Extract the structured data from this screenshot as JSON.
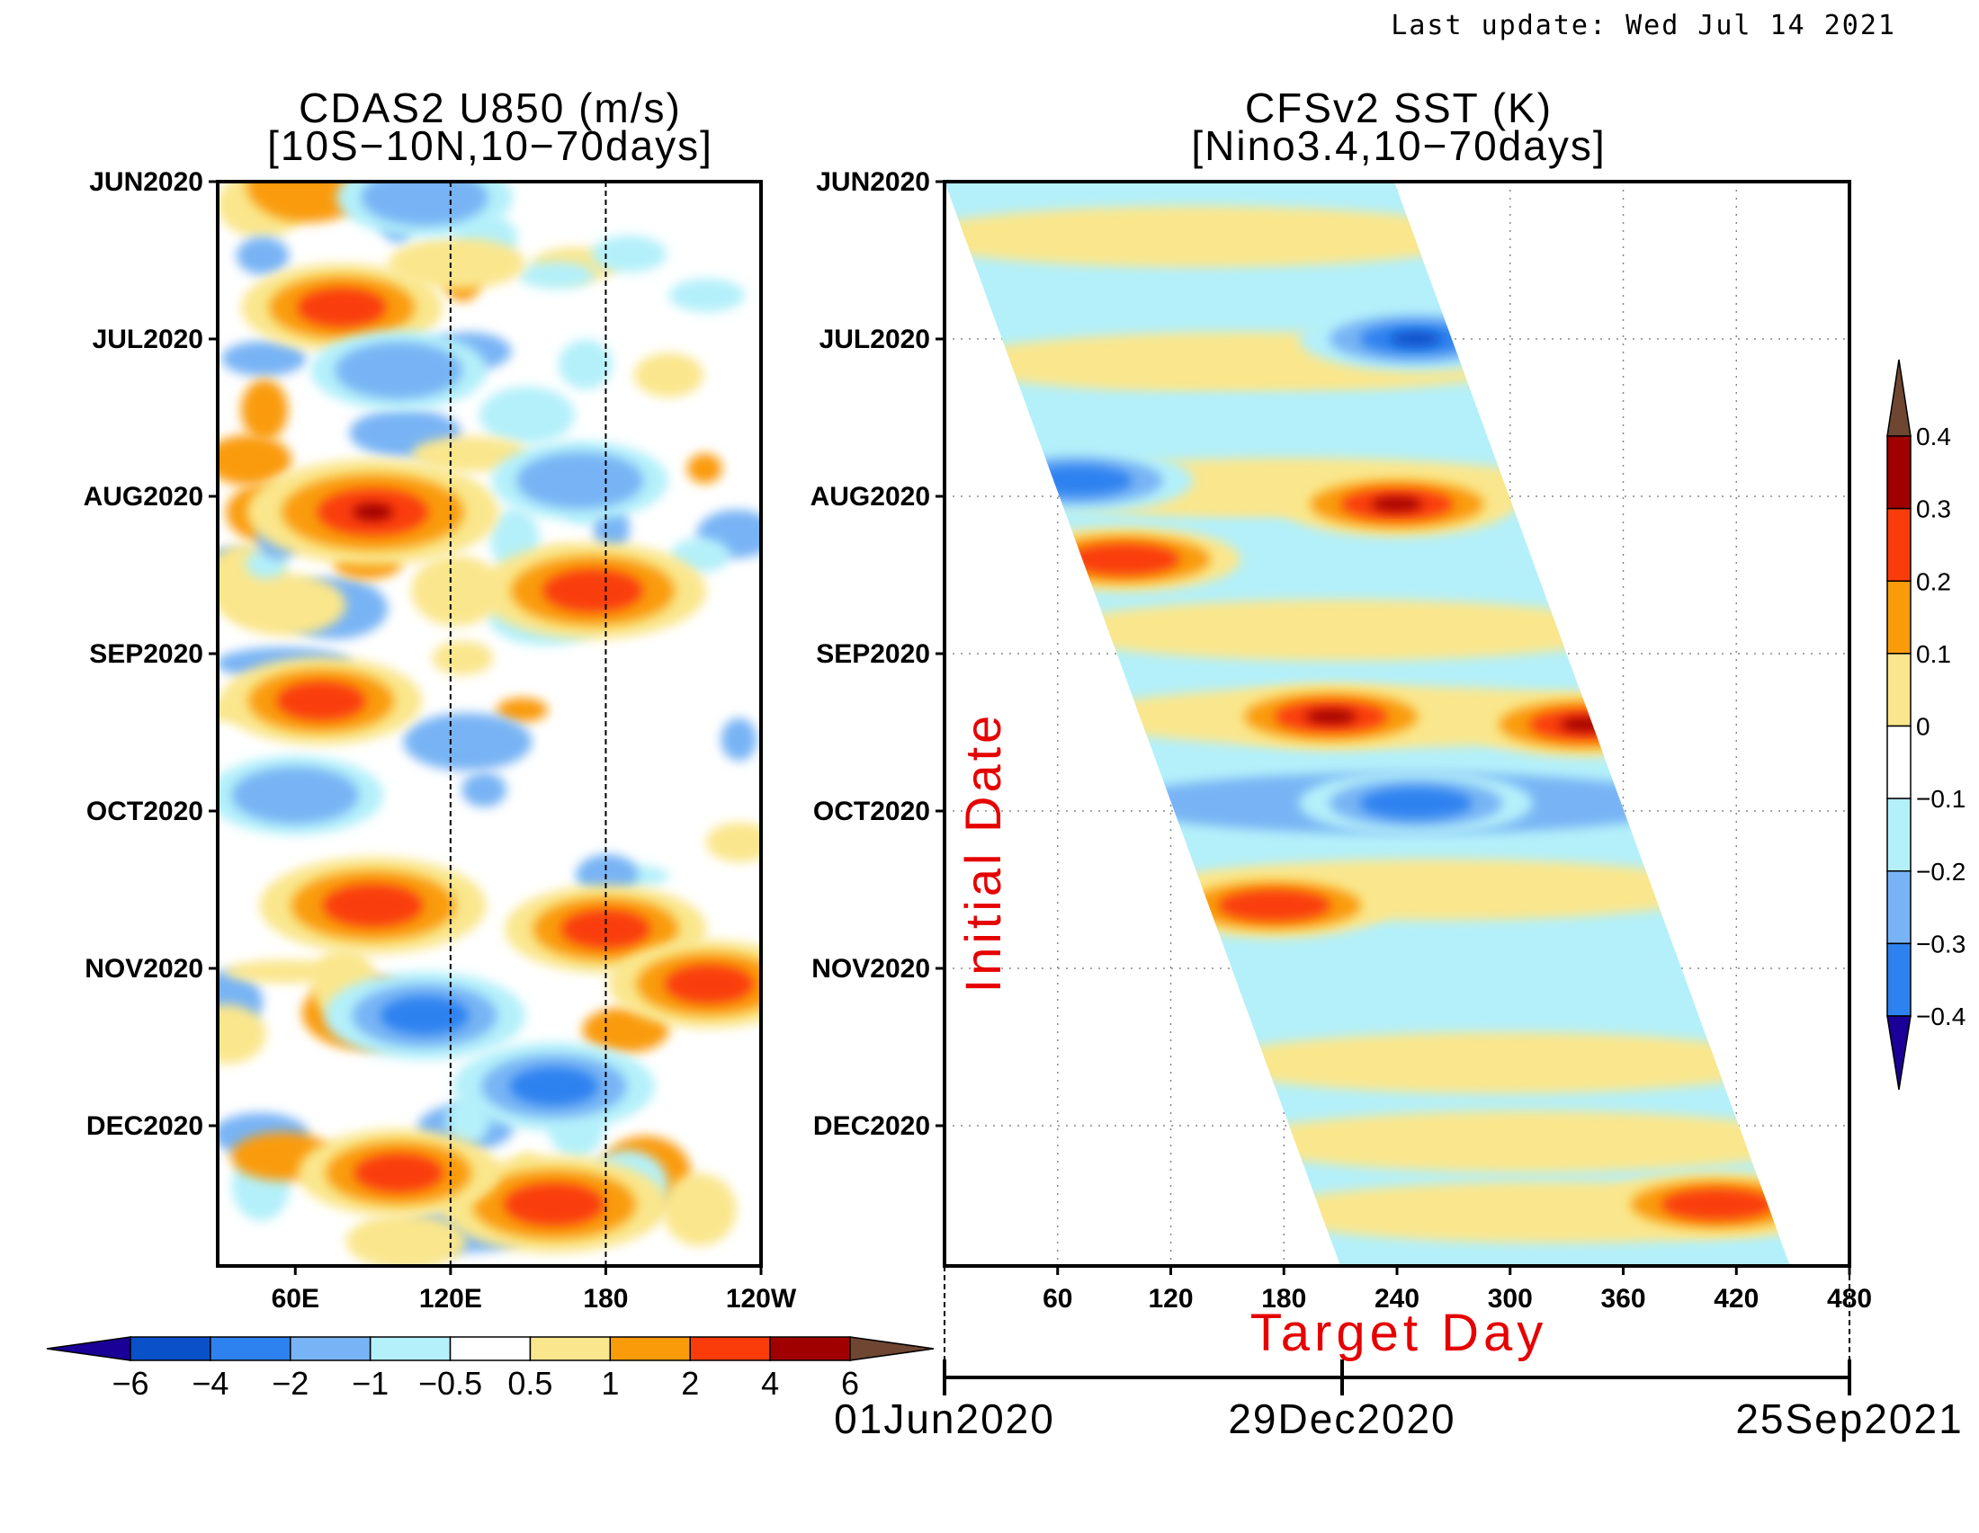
{
  "last_update": "Last update: Wed Jul 14 2021",
  "colors": {
    "scale": [
      "#1a0096",
      "#0a50c8",
      "#2d82f0",
      "#78b4f5",
      "#b4f0fa",
      "#ffffff",
      "#fae68c",
      "#fa9b0a",
      "#fa3c0a",
      "#a00000",
      "#6e4632"
    ],
    "red_label": "#e60000"
  },
  "chart_data": [
    {
      "type": "heatmap",
      "title": "CDAS2 U850 (m/s)",
      "subtitle": "[10S−10N,10−70days]",
      "y_ticks": [
        "JUN2020",
        "JUL2020",
        "AUG2020",
        "SEP2020",
        "OCT2020",
        "NOV2020",
        "DEC2020"
      ],
      "x_ticks": [
        "60E",
        "120E",
        "180",
        "120W"
      ],
      "reference_lines_lon": [
        120,
        180
      ],
      "xlim": [
        30,
        240
      ],
      "colorbar": {
        "labels": [
          "−6",
          "−4",
          "−2",
          "−1",
          "−0.5",
          "0.5",
          "1",
          "2",
          "4",
          "6"
        ],
        "orientation": "horizontal"
      },
      "features": [
        {
          "lon": 78,
          "month": 0.8,
          "value": 3
        },
        {
          "lon": 90,
          "month": 2.1,
          "value": 5
        },
        {
          "lon": 175,
          "month": 2.6,
          "value": 4
        },
        {
          "lon": 70,
          "month": 3.3,
          "value": 3
        },
        {
          "lon": 90,
          "month": 4.6,
          "value": 4
        },
        {
          "lon": 180,
          "month": 4.75,
          "value": 3
        },
        {
          "lon": 220,
          "month": 5.1,
          "value": 3
        },
        {
          "lon": 160,
          "month": 6.5,
          "value": 4
        },
        {
          "lon": 100,
          "month": 6.3,
          "value": 3
        },
        {
          "lon": 110,
          "month": 5.3,
          "value": -3
        },
        {
          "lon": 160,
          "month": 5.75,
          "value": -3
        },
        {
          "lon": 60,
          "month": 3.9,
          "value": -2
        },
        {
          "lon": 100,
          "month": 1.2,
          "value": -2
        },
        {
          "lon": 170,
          "month": 1.9,
          "value": -2
        },
        {
          "lon": 110,
          "month": 0.1,
          "value": -2
        }
      ]
    },
    {
      "type": "heatmap",
      "title": "CFSv2 SST (K)",
      "subtitle": "[Nino3.4,10−70days]",
      "y_ticks": [
        "JUN2020",
        "JUL2020",
        "AUG2020",
        "SEP2020",
        "OCT2020",
        "NOV2020",
        "DEC2020"
      ],
      "x_ticks": [
        "60",
        "120",
        "180",
        "240",
        "300",
        "360",
        "420",
        "480"
      ],
      "xlabel": "Target Day",
      "ylabel": "Initial Date",
      "xlim": [
        0,
        480
      ],
      "date_axis": [
        "01Jun2020",
        "29Dec2020",
        "25Sep2021"
      ],
      "colorbar": {
        "labels": [
          "0.4",
          "0.3",
          "0.2",
          "0.1",
          "0",
          "−0.1",
          "−0.2",
          "−0.3",
          "−0.4"
        ],
        "orientation": "vertical"
      },
      "features": [
        {
          "target_day": 240,
          "month": 2.05,
          "value": 0.32
        },
        {
          "target_day": 205,
          "month": 3.4,
          "value": 0.33
        },
        {
          "target_day": 340,
          "month": 3.45,
          "value": 0.33
        },
        {
          "target_day": 95,
          "month": 2.4,
          "value": 0.22
        },
        {
          "target_day": 175,
          "month": 4.6,
          "value": 0.22
        },
        {
          "target_day": 410,
          "month": 6.5,
          "value": 0.2
        },
        {
          "target_day": 250,
          "month": 3.95,
          "value": -0.25
        },
        {
          "target_day": 250,
          "month": 1.0,
          "value": -0.3
        },
        {
          "target_day": 70,
          "month": 1.9,
          "value": -0.2
        }
      ]
    }
  ]
}
